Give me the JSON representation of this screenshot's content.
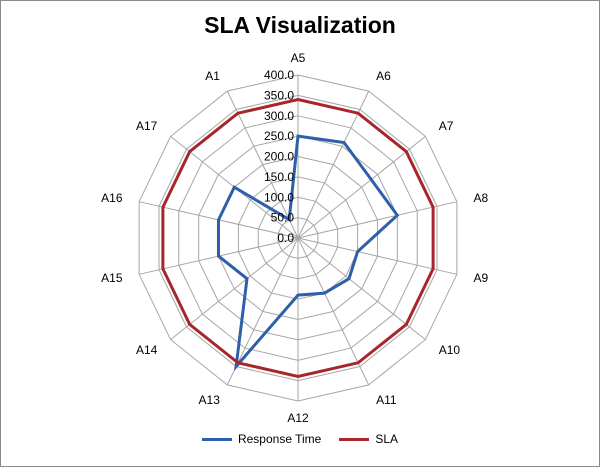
{
  "chart_data": {
    "type": "radar",
    "title": "SLA Visualization",
    "categories": [
      "A5",
      "A6",
      "A7",
      "A8",
      "A9",
      "A10",
      "A11",
      "A12",
      "A13",
      "A14",
      "A15",
      "A16",
      "A17",
      "A1"
    ],
    "series": [
      {
        "name": "Response Time",
        "color": "#2e5fa8",
        "values": [
          250,
          260,
          230,
          250,
          150,
          160,
          150,
          140,
          350,
          160,
          200,
          200,
          200,
          50
        ]
      },
      {
        "name": "SLA",
        "color": "#a8262b",
        "values": [
          340,
          340,
          340,
          340,
          340,
          340,
          340,
          340,
          340,
          340,
          340,
          340,
          340,
          340
        ]
      }
    ],
    "r_axis": {
      "min": 0,
      "max": 400,
      "step": 50,
      "tick_labels": [
        "0.0",
        "50.0",
        "100.0",
        "150.0",
        "200.0",
        "250.0",
        "300.0",
        "350.0",
        "400.0"
      ]
    },
    "legend": "bottom"
  }
}
